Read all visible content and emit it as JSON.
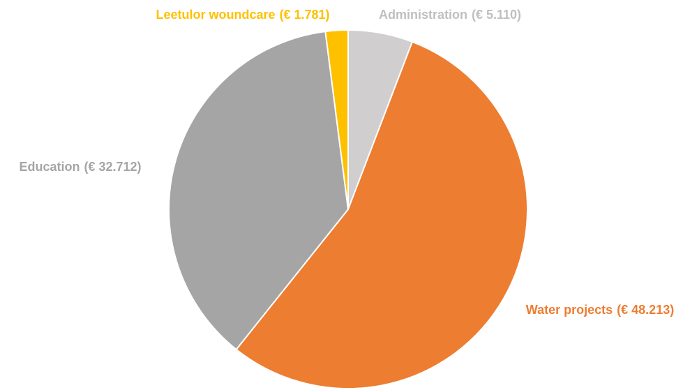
{
  "chart_data": {
    "type": "pie",
    "categories": [
      "Administration",
      "Water projects",
      "Education",
      "Leetulor woundcare"
    ],
    "values": [
      5110,
      48213,
      32712,
      1781
    ],
    "value_labels": [
      "(€ 5.110)",
      "(€ 48.213)",
      "(€ 32.712)",
      "(€ 1.781)"
    ],
    "colors": [
      "#d0cece",
      "#ed7d31",
      "#a5a5a5",
      "#ffc000"
    ],
    "label_colors": [
      "#bfbfbf",
      "#ed7d31",
      "#a5a5a5",
      "#ffc000"
    ]
  }
}
